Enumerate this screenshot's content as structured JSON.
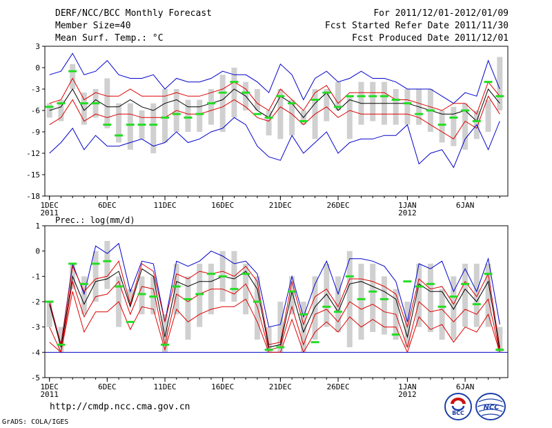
{
  "header": {
    "left": [
      "DERF/NCC/BCC Monthly Forecast",
      "Member Size=40",
      "Mean Surf. Temp.: °C"
    ],
    "right": [
      "For 2011/12/01-2012/01/09",
      "Fcst Started Refer Date 2011/11/30",
      "Fcst Produced Date 2011/12/01"
    ]
  },
  "footer": {
    "url": "http://cmdp.ncc.cma.gov.cn",
    "grads": "GrADS: COLA/IGES"
  },
  "logos": {
    "bcc_text": "BCC",
    "ncc_text": "NCC"
  },
  "colors": {
    "minmax": "#0000cc",
    "tercile": "#dd0000",
    "mean": "#000000",
    "box": "#d0d0d0",
    "obs": "#22dd22"
  },
  "chart_data": [
    {
      "type": "line",
      "name": "temperature",
      "title": "",
      "ylabel": "Mean Surf. Temp.: °C",
      "ylim": [
        -18,
        3
      ],
      "yticks": [
        3,
        0,
        -3,
        -6,
        -9,
        -12,
        -15,
        -18
      ],
      "x": [
        1,
        2,
        3,
        4,
        5,
        6,
        7,
        8,
        9,
        10,
        11,
        12,
        13,
        14,
        15,
        16,
        17,
        18,
        19,
        20,
        21,
        22,
        23,
        24,
        25,
        26,
        27,
        28,
        29,
        30,
        31,
        32,
        33,
        34,
        35,
        36,
        37,
        38,
        39,
        40
      ],
      "xlim": [
        0.6,
        40.7
      ],
      "xticks": [
        {
          "x": 1,
          "label": "1DEC",
          "sub": "2011"
        },
        {
          "x": 6,
          "label": "6DEC",
          "sub": ""
        },
        {
          "x": 11,
          "label": "11DEC",
          "sub": ""
        },
        {
          "x": 16,
          "label": "16DEC",
          "sub": ""
        },
        {
          "x": 21,
          "label": "21DEC",
          "sub": ""
        },
        {
          "x": 26,
          "label": "26DEC",
          "sub": ""
        },
        {
          "x": 32,
          "label": "1JAN",
          "sub": "2012"
        },
        {
          "x": 37,
          "label": "6JAN",
          "sub": ""
        }
      ],
      "box_low": [
        -7,
        -7.5,
        -3,
        -8,
        -7,
        -8.5,
        -10.5,
        -11.5,
        -10,
        -12,
        -10.5,
        -9,
        -9,
        -9,
        -8,
        -9,
        -7,
        -6,
        -6,
        -9.5,
        -10,
        -9.5,
        -8,
        -10,
        -7.5,
        -6,
        -10,
        -8,
        -7.5,
        -8,
        -8,
        -8,
        -8,
        -9,
        -10.5,
        -11,
        -11.5,
        -10,
        -9,
        -6
      ],
      "box_high": [
        -5,
        -4.5,
        0.5,
        -3.5,
        -3,
        -1.5,
        -5,
        -5,
        -6,
        -5,
        -3,
        -3,
        -4.5,
        -4.5,
        -3,
        -1,
        0,
        -2,
        -3,
        -6,
        -3,
        -4.5,
        -6,
        -3,
        -3,
        -2,
        -4,
        -2,
        -2,
        -2,
        -3,
        -3,
        -3,
        -3,
        -6,
        -5.5,
        -5,
        -6,
        -4.5,
        1.5
      ],
      "series": [
        {
          "name": "max",
          "color": "#0000cc",
          "values": [
            -1,
            -0.5,
            2,
            -1,
            -0.5,
            1,
            -1,
            -1.5,
            -1.5,
            -1,
            -3,
            -1.5,
            -2,
            -2,
            -1.5,
            -0.5,
            -1,
            -1,
            -2,
            -3.5,
            0.5,
            -1,
            -4.5,
            -1.5,
            -0.5,
            -2,
            -1.5,
            -0.5,
            -1.5,
            -1.5,
            -2,
            -3,
            -3,
            -3,
            -4,
            -5,
            -3.5,
            -4,
            1,
            -3
          ]
        },
        {
          "name": "upper",
          "color": "#dd0000",
          "values": [
            -5,
            -4.5,
            -1.5,
            -4.5,
            -3.5,
            -4,
            -4,
            -3,
            -4,
            -4,
            -4,
            -3.5,
            -4,
            -4,
            -3.5,
            -3,
            -2,
            -3,
            -5,
            -6,
            -3,
            -4.5,
            -6,
            -3.5,
            -2.5,
            -5,
            -3.5,
            -3.5,
            -3.5,
            -3.5,
            -4.5,
            -4.5,
            -5,
            -5.5,
            -6,
            -5,
            -5,
            -6.5,
            -2,
            -4
          ]
        },
        {
          "name": "mean",
          "color": "#000000",
          "values": [
            -6,
            -5.5,
            -3,
            -6,
            -4.5,
            -5.5,
            -5.5,
            -4.5,
            -5.5,
            -6,
            -5,
            -4.5,
            -5.5,
            -5.5,
            -5,
            -4.5,
            -3,
            -4,
            -6,
            -7,
            -4,
            -5,
            -7,
            -5,
            -3.5,
            -6,
            -4.5,
            -5,
            -5,
            -5,
            -5,
            -5,
            -5.5,
            -6,
            -6.5,
            -6.5,
            -6,
            -7.5,
            -3,
            -5
          ]
        },
        {
          "name": "lower",
          "color": "#dd0000",
          "values": [
            -8,
            -7,
            -4.5,
            -7.5,
            -6.5,
            -7,
            -6.5,
            -6.5,
            -7,
            -7,
            -7,
            -6,
            -6.5,
            -6.5,
            -6,
            -5.5,
            -4.5,
            -5.5,
            -7,
            -7.5,
            -5.5,
            -6.5,
            -8,
            -6.5,
            -5.5,
            -7,
            -6,
            -6.5,
            -6.5,
            -6.5,
            -6.5,
            -6.5,
            -7,
            -8,
            -9,
            -10,
            -7.5,
            -8.5,
            -4,
            -6.5
          ]
        },
        {
          "name": "min",
          "color": "#0000cc",
          "values": [
            -12,
            -10.5,
            -8.5,
            -11.5,
            -9.5,
            -11,
            -11,
            -10.5,
            -10,
            -11,
            -10.5,
            -9,
            -10.5,
            -10,
            -9,
            -8.5,
            -7,
            -8,
            -11,
            -12.5,
            -13,
            -9.5,
            -12,
            -10.5,
            -9,
            -12,
            -10.5,
            -10,
            -10,
            -9.5,
            -9.5,
            -8,
            -13.5,
            -12,
            -11.5,
            -14,
            -10,
            -8,
            -11.5,
            -7.5
          ]
        }
      ],
      "obs": [
        -5.5,
        -5,
        -0.5,
        -5,
        -5,
        -8,
        -9.5,
        -8,
        -8,
        -8,
        -7,
        -6.5,
        -7,
        -6.5,
        -5,
        -3.5,
        -2,
        -3.5,
        -6.5,
        -7,
        -4,
        -5,
        -7.5,
        -4.5,
        -3.5,
        -5.5,
        -4,
        -4,
        -4,
        -4,
        -4.5,
        -5,
        -6.5,
        -6,
        -8,
        -7,
        -6,
        -7.5,
        -2,
        -4
      ]
    },
    {
      "type": "line",
      "name": "precipitation",
      "title": "",
      "ylabel": "Prec.: log(mm/d)",
      "ylim": [
        -5,
        1
      ],
      "yticks": [
        1,
        0,
        -1,
        -2,
        -3,
        -4,
        -5
      ],
      "x": [
        1,
        2,
        3,
        4,
        5,
        6,
        7,
        8,
        9,
        10,
        11,
        12,
        13,
        14,
        15,
        16,
        17,
        18,
        19,
        20,
        21,
        22,
        23,
        24,
        25,
        26,
        27,
        28,
        29,
        30,
        31,
        32,
        33,
        34,
        35,
        36,
        37,
        38,
        39,
        40
      ],
      "xlim": [
        0.6,
        40.7
      ],
      "xticks": [
        {
          "x": 1,
          "label": "1DEC",
          "sub": "2011"
        },
        {
          "x": 6,
          "label": "6DEC",
          "sub": ""
        },
        {
          "x": 11,
          "label": "11DEC",
          "sub": ""
        },
        {
          "x": 16,
          "label": "16DEC",
          "sub": ""
        },
        {
          "x": 21,
          "label": "21DEC",
          "sub": ""
        },
        {
          "x": 26,
          "label": "26DEC",
          "sub": ""
        },
        {
          "x": 32,
          "label": "1JAN",
          "sub": "2012"
        },
        {
          "x": 37,
          "label": "6JAN",
          "sub": ""
        }
      ],
      "box_low": [
        -3,
        -4,
        -1.5,
        -2.5,
        -2,
        -1.5,
        -3,
        -2,
        -2.5,
        -2.5,
        -4,
        -2.5,
        -3.5,
        -3,
        -2.5,
        -2,
        -2,
        -2.5,
        -3.5,
        -4,
        -4,
        -2.5,
        -4,
        -3.5,
        -3,
        -3.2,
        -3.8,
        -3.5,
        -3.2,
        -3.3,
        -3.5,
        -3.8,
        -3,
        -3.2,
        -3.5,
        -3.5,
        -3,
        -3,
        -3,
        -4
      ],
      "box_high": [
        -2,
        -3,
        -0.5,
        -1,
        0,
        0.4,
        -1,
        -1.5,
        -1,
        -1,
        -2.5,
        -0.5,
        -1,
        -0.5,
        -0.5,
        0,
        0,
        -0.5,
        -1,
        -3,
        -2,
        -1,
        -2,
        -1,
        -0.5,
        -1,
        0,
        -0.5,
        -0.5,
        -1,
        -1.5,
        -2,
        -0.5,
        -0.5,
        -1.5,
        -1,
        -0.5,
        -0.5,
        -0.5,
        -3
      ],
      "series": [
        {
          "name": "max",
          "color": "#0000cc",
          "values": [
            -2,
            -3.7,
            -0.5,
            -1.7,
            0.2,
            -0.1,
            0.3,
            -1.6,
            -0.4,
            -0.5,
            -2.8,
            -0.4,
            -0.6,
            -0.4,
            0,
            -0.2,
            -0.5,
            -0.4,
            -0.9,
            -3,
            -2.9,
            -1,
            -2.6,
            -1.3,
            -0.4,
            -1.7,
            -0.3,
            -0.3,
            -0.4,
            -0.6,
            -1.2,
            -2.8,
            -0.5,
            -0.7,
            -0.4,
            -1.6,
            -0.7,
            -1.6,
            -0.3,
            -2.9
          ]
        },
        {
          "name": "upper",
          "color": "#dd0000",
          "values": [
            -2,
            -3.7,
            -0.6,
            -1.6,
            -1.1,
            -1,
            -0.4,
            -2.1,
            -0.5,
            -0.8,
            -2.8,
            -0.9,
            -1.1,
            -0.8,
            -0.9,
            -0.8,
            -1,
            -0.6,
            -1.2,
            -3.7,
            -3.6,
            -1.2,
            -2.9,
            -1.8,
            -1.5,
            -2.2,
            -1.1,
            -1.1,
            -1.2,
            -1.4,
            -1.7,
            -3,
            -1.1,
            -1.5,
            -1.4,
            -2.1,
            -1.2,
            -1.8,
            -0.9,
            -3.8
          ]
        },
        {
          "name": "mean",
          "color": "#000000",
          "values": [
            -2.1,
            -3.8,
            -1,
            -2.1,
            -1.2,
            -1.1,
            -0.8,
            -2.2,
            -0.7,
            -1,
            -3.4,
            -1.2,
            -1.4,
            -1.2,
            -1.2,
            -1,
            -1.1,
            -0.8,
            -1.5,
            -3.8,
            -3.7,
            -1.6,
            -3.2,
            -2.2,
            -1.7,
            -2.4,
            -1.3,
            -1.2,
            -1.4,
            -1.6,
            -1.9,
            -3.4,
            -1.3,
            -1.6,
            -1.6,
            -2.3,
            -1.5,
            -2,
            -1.2,
            -3.9
          ]
        },
        {
          "name": "lower",
          "color": "#dd0000",
          "values": [
            -3,
            -4,
            -1.2,
            -2.6,
            -1.8,
            -1.7,
            -1.2,
            -2.5,
            -1.4,
            -1.5,
            -3.7,
            -1.7,
            -2,
            -1.7,
            -1.5,
            -1.5,
            -1.7,
            -1.3,
            -2.2,
            -3.9,
            -3.8,
            -2.2,
            -3.7,
            -2.5,
            -2.3,
            -2.8,
            -2,
            -2.3,
            -2.1,
            -2.4,
            -2.5,
            -3.8,
            -2,
            -2.4,
            -2.3,
            -2.8,
            -2.3,
            -2.5,
            -1.9,
            -4
          ]
        },
        {
          "name": "min",
          "color": "#dd0000",
          "values": [
            -3.6,
            -4,
            -1.6,
            -3.2,
            -2.4,
            -2.4,
            -2,
            -3.1,
            -2.2,
            -2.3,
            -3.9,
            -2.3,
            -2.8,
            -2.5,
            -2.3,
            -2.2,
            -2.2,
            -1.9,
            -2.8,
            -4,
            -4,
            -2.7,
            -4,
            -3.2,
            -2.8,
            -3.2,
            -2.6,
            -3,
            -2.7,
            -3,
            -3,
            -4,
            -2.6,
            -3.1,
            -2.9,
            -3.6,
            -3,
            -3.2,
            -2.5,
            -4
          ]
        }
      ],
      "baseline": -4,
      "obs": [
        -2,
        -3.7,
        -0.5,
        -1.3,
        -0.5,
        -0.4,
        -1.4,
        -2.8,
        -1.7,
        -1.8,
        -3.7,
        -1.4,
        -1.9,
        -1.7,
        -0.9,
        -1,
        -1.5,
        -0.9,
        -2,
        -3.9,
        -3.8,
        -1.6,
        -2.5,
        -3.6,
        -2.2,
        -2.4,
        -1,
        -1.9,
        -1.6,
        -1.9,
        -3.3,
        -1.2,
        -1.4,
        -1.3,
        -2.2,
        -1.8,
        -1.3,
        -2.1,
        -0.9,
        -3.9
      ]
    }
  ]
}
